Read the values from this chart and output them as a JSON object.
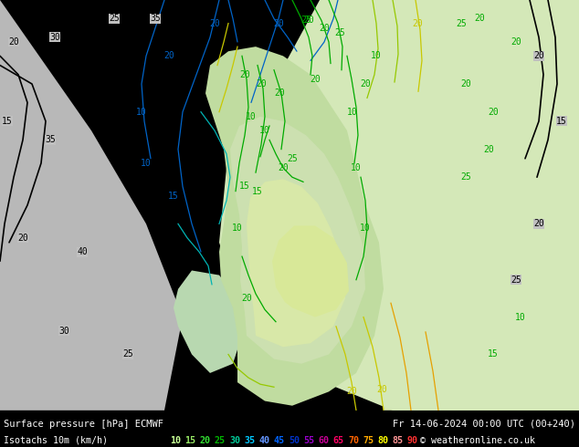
{
  "title_line1": "Surface pressure [hPa] ECMWF",
  "title_line2": "Fr 14-06-2024 00:00 UTC (00+240)",
  "legend_label": "Isotachs 10m (km/h)",
  "copyright": "© weatheronline.co.uk",
  "isotach_values": [
    10,
    15,
    20,
    25,
    30,
    35,
    40,
    45,
    50,
    55,
    60,
    65,
    70,
    75,
    80,
    85,
    90
  ],
  "bar_colors": [
    "#c8ff96",
    "#96e664",
    "#32dc32",
    "#00b400",
    "#00c896",
    "#00c8ff",
    "#6496ff",
    "#0064ff",
    "#0032c8",
    "#9600c8",
    "#c80096",
    "#ff0064",
    "#ff6400",
    "#ffaa00",
    "#ffff00",
    "#ff9696",
    "#ff3232"
  ],
  "map_sea_color": "#c8c8c8",
  "map_land_light": "#c8e6c8",
  "map_land_medium": "#a0d0a0",
  "map_land_yellow": "#e6e696",
  "map_land_orange": "#e6c864",
  "bottom_bg": "#000000",
  "fig_width": 6.34,
  "fig_height": 4.9,
  "dpi": 100,
  "contour_black_color": "#000000",
  "contour_blue_color": "#0064c8",
  "contour_cyan_color": "#00c8c8",
  "contour_green_color": "#00aa00",
  "contour_yellow_color": "#c8c800",
  "sea_left_color": "#b4b4b4",
  "land_green_color": "#b4d4b4"
}
